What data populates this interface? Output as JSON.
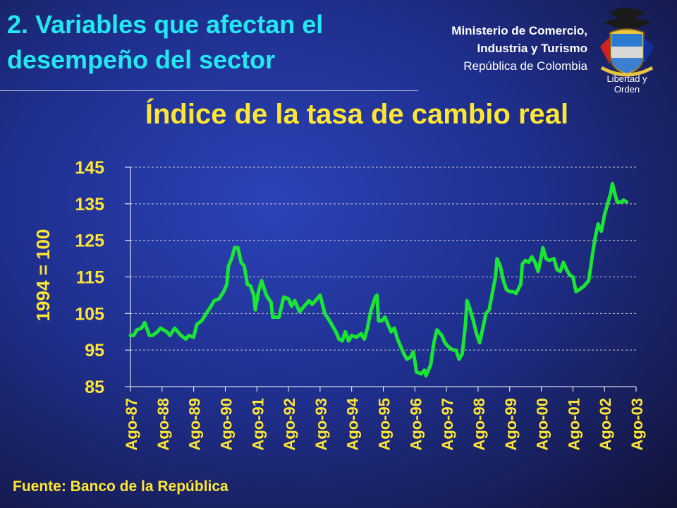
{
  "slide": {
    "title": "2. Variables que afectan el desempeño del sector",
    "ministry_line1": "Ministerio de Comercio,",
    "ministry_line2": "Industria y Turismo",
    "ministry_line3": "República de Colombia",
    "emblem_caption": "Libertad y Orden",
    "source": "Fuente: Banco de la República"
  },
  "colors": {
    "title": "#22e8f0",
    "accent_yellow": "#ffe633",
    "line": "#19e633",
    "grid": "#c8c8c8"
  },
  "chart_data": {
    "type": "line",
    "title": "Índice de la tasa de cambio real",
    "ylabel": "1994 = 100",
    "xlabel": "",
    "ylim": [
      85,
      145
    ],
    "yticks": [
      85,
      95,
      105,
      115,
      125,
      135,
      145
    ],
    "grid": true,
    "categories": [
      "Ago-87",
      "Ago-88",
      "Ago-89",
      "Ago-90",
      "Ago-91",
      "Ago-92",
      "Ago-93",
      "Ago-94",
      "Ago-95",
      "Ago-96",
      "Ago-97",
      "Ago-98",
      "Ago-99",
      "Ago-00",
      "Ago-01",
      "Ago-02",
      "Ago-03"
    ],
    "series": [
      {
        "values": [
          [
            0,
            99
          ],
          [
            0.1,
            99
          ],
          [
            0.2,
            100.5
          ],
          [
            0.35,
            101
          ],
          [
            0.45,
            102.5
          ],
          [
            0.6,
            99
          ],
          [
            0.7,
            99
          ],
          [
            0.85,
            100
          ],
          [
            0.95,
            101
          ],
          [
            1.05,
            100.5
          ],
          [
            1.15,
            100
          ],
          [
            1.25,
            99
          ],
          [
            1.4,
            101
          ],
          [
            1.5,
            100
          ],
          [
            1.6,
            99
          ],
          [
            1.75,
            98
          ],
          [
            1.85,
            99
          ],
          [
            2.0,
            98.5
          ],
          [
            2.1,
            102
          ],
          [
            2.25,
            103
          ],
          [
            2.4,
            105
          ],
          [
            2.55,
            107
          ],
          [
            2.65,
            108.5
          ],
          [
            2.8,
            109
          ],
          [
            2.95,
            111
          ],
          [
            3.05,
            113
          ],
          [
            3.1,
            118
          ],
          [
            3.2,
            120
          ],
          [
            3.3,
            123
          ],
          [
            3.4,
            123
          ],
          [
            3.5,
            119
          ],
          [
            3.6,
            118
          ],
          [
            3.7,
            113
          ],
          [
            3.8,
            112.5
          ],
          [
            3.9,
            110
          ],
          [
            3.95,
            106
          ],
          [
            4.05,
            111
          ],
          [
            4.15,
            114
          ],
          [
            4.3,
            110
          ],
          [
            4.45,
            108
          ],
          [
            4.5,
            104
          ],
          [
            4.7,
            104
          ],
          [
            4.85,
            109.5
          ],
          [
            5.0,
            109
          ],
          [
            5.1,
            107
          ],
          [
            5.2,
            108.5
          ],
          [
            5.35,
            105.5
          ],
          [
            5.5,
            107
          ],
          [
            5.65,
            108.5
          ],
          [
            5.75,
            107.5
          ],
          [
            5.9,
            109
          ],
          [
            6.0,
            110
          ],
          [
            6.15,
            105
          ],
          [
            6.3,
            103
          ],
          [
            6.4,
            101.5
          ],
          [
            6.5,
            100
          ],
          [
            6.6,
            98
          ],
          [
            6.7,
            97.5
          ],
          [
            6.8,
            100
          ],
          [
            6.9,
            97.5
          ],
          [
            7.0,
            99
          ],
          [
            7.15,
            98.5
          ],
          [
            7.3,
            99.5
          ],
          [
            7.4,
            98
          ],
          [
            7.5,
            101
          ],
          [
            7.6,
            105.5
          ],
          [
            7.75,
            109.5
          ],
          [
            7.8,
            110
          ],
          [
            7.85,
            103
          ],
          [
            7.95,
            103
          ],
          [
            8.05,
            104
          ],
          [
            8.15,
            102
          ],
          [
            8.25,
            100
          ],
          [
            8.35,
            101
          ],
          [
            8.45,
            98
          ],
          [
            8.55,
            96
          ],
          [
            8.65,
            94
          ],
          [
            8.75,
            92.5
          ],
          [
            8.85,
            93
          ],
          [
            8.95,
            94.5
          ],
          [
            9.0,
            92
          ],
          [
            9.05,
            89
          ],
          [
            9.2,
            88.5
          ],
          [
            9.3,
            89.5
          ],
          [
            9.35,
            88
          ],
          [
            9.5,
            91
          ],
          [
            9.6,
            97
          ],
          [
            9.7,
            100.5
          ],
          [
            9.85,
            99
          ],
          [
            9.95,
            97
          ],
          [
            10.05,
            96
          ],
          [
            10.2,
            95
          ],
          [
            10.3,
            95
          ],
          [
            10.4,
            92.5
          ],
          [
            10.5,
            94
          ],
          [
            10.6,
            102
          ],
          [
            10.65,
            108.5
          ],
          [
            10.75,
            106
          ],
          [
            10.85,
            103
          ],
          [
            10.95,
            99.5
          ],
          [
            11.05,
            97
          ],
          [
            11.15,
            101
          ],
          [
            11.25,
            105
          ],
          [
            11.35,
            106
          ],
          [
            11.45,
            110.5
          ],
          [
            11.55,
            115
          ],
          [
            11.6,
            120
          ],
          [
            11.7,
            118
          ],
          [
            11.8,
            114
          ],
          [
            11.9,
            111.5
          ],
          [
            12.0,
            111
          ],
          [
            12.1,
            111
          ],
          [
            12.2,
            110.5
          ],
          [
            12.35,
            113
          ],
          [
            12.4,
            118.5
          ],
          [
            12.5,
            119.5
          ],
          [
            12.6,
            119
          ],
          [
            12.7,
            120.5
          ],
          [
            12.8,
            119
          ],
          [
            12.9,
            116.5
          ],
          [
            13.0,
            120.5
          ],
          [
            13.05,
            123
          ],
          [
            13.15,
            120
          ],
          [
            13.25,
            119.5
          ],
          [
            13.4,
            120
          ],
          [
            13.5,
            117
          ],
          [
            13.6,
            116.5
          ],
          [
            13.7,
            119
          ],
          [
            13.8,
            117
          ],
          [
            13.9,
            115.5
          ],
          [
            14.0,
            115
          ],
          [
            14.1,
            111
          ],
          [
            14.2,
            111.5
          ],
          [
            14.35,
            112.5
          ],
          [
            14.5,
            114
          ],
          [
            14.6,
            120
          ],
          [
            14.7,
            125.5
          ],
          [
            14.8,
            129.5
          ],
          [
            14.9,
            127.5
          ],
          [
            15.0,
            132
          ],
          [
            15.1,
            135
          ],
          [
            15.2,
            138
          ],
          [
            15.25,
            140.5
          ],
          [
            15.35,
            137
          ],
          [
            15.4,
            135.5
          ],
          [
            15.55,
            135.5
          ],
          [
            15.6,
            136
          ],
          [
            15.7,
            135.5
          ]
        ]
      }
    ]
  }
}
